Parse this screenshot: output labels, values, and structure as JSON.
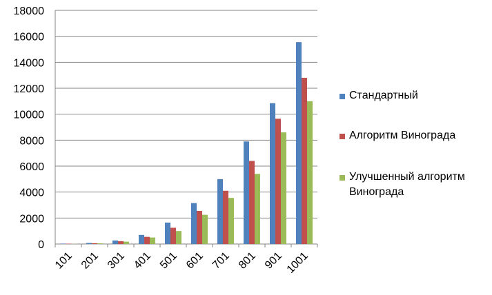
{
  "chart_data": {
    "type": "bar",
    "categories": [
      "101",
      "201",
      "301",
      "401",
      "501",
      "601",
      "701",
      "801",
      "901",
      "1001"
    ],
    "series": [
      {
        "name": "Стандартный",
        "color": "#4F81BD",
        "values": [
          30,
          80,
          270,
          700,
          1650,
          3150,
          5000,
          7900,
          10850,
          15550
        ]
      },
      {
        "name": "Алгоритм Винограда",
        "color": "#C0504D",
        "values": [
          25,
          60,
          220,
          550,
          1250,
          2550,
          4100,
          6400,
          9650,
          12800
        ]
      },
      {
        "name": "Улучшенный алгоритм Винограда",
        "color": "#9BBB59",
        "values": [
          20,
          50,
          180,
          500,
          1000,
          2250,
          3550,
          5400,
          8600,
          11000
        ]
      }
    ],
    "yticks": [
      "0",
      "2000",
      "4000",
      "6000",
      "8000",
      "10000",
      "12000",
      "14000",
      "16000",
      "18000"
    ],
    "ylim": [
      0,
      18000
    ],
    "grid": true,
    "legend_position": "right",
    "title": "",
    "xlabel": "",
    "ylabel": ""
  },
  "legend": {
    "item1": "Стандартный",
    "item2": "Алгоритм Винограда",
    "item3_line1": "Улучшенный алгоритм",
    "item3_line2": "Винограда"
  }
}
